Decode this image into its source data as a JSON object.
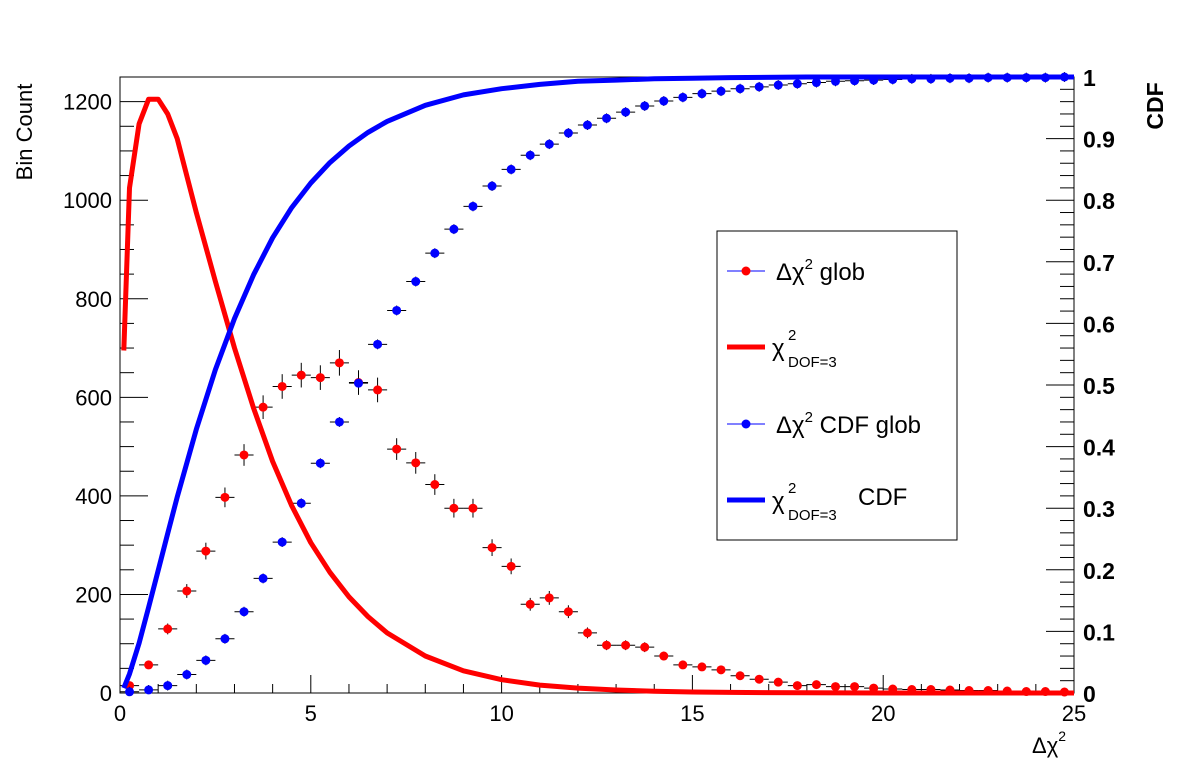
{
  "chart_data": {
    "type": "scatter",
    "x_axis": {
      "title": "Δχ",
      "title_superscript": "2",
      "range": [
        0,
        25
      ],
      "major_ticks": [
        0,
        5,
        10,
        15,
        20,
        25
      ],
      "tick_labels": [
        "0",
        "5",
        "10",
        "15",
        "20",
        "25"
      ]
    },
    "y_axis_left": {
      "title": "Bin Count",
      "range": [
        0,
        1250
      ],
      "major_ticks": [
        0,
        200,
        400,
        600,
        800,
        1000,
        1200
      ],
      "tick_labels": [
        "0",
        "200",
        "400",
        "600",
        "800",
        "1000",
        "1200"
      ]
    },
    "y_axis_right": {
      "title": "CDF",
      "range": [
        0,
        1
      ],
      "major_ticks": [
        0,
        0.1,
        0.2,
        0.3,
        0.4,
        0.5,
        0.6,
        0.7,
        0.8,
        0.9,
        1
      ],
      "tick_labels": [
        "0",
        "0.1",
        "0.2",
        "0.3",
        "0.4",
        "0.5",
        "0.6",
        "0.7",
        "0.8",
        "0.9",
        "1"
      ]
    },
    "legend": {
      "placement": "center-right",
      "entries": [
        {
          "key": "glob",
          "text_main": "Δχ",
          "text_sup": "2",
          "text_after": " glob",
          "text_sub": ""
        },
        {
          "key": "chi2",
          "text_main": "χ",
          "text_sup": "2",
          "text_after": "",
          "text_sub": "DOF=3"
        },
        {
          "key": "cdf_glob",
          "text_main": "Δχ",
          "text_sup": "2",
          "text_after": " CDF glob",
          "text_sub": ""
        },
        {
          "key": "chi2_cdf",
          "text_main": "χ",
          "text_sup": "2",
          "text_after": " CDF",
          "text_sub": "DOF=3"
        }
      ]
    },
    "series": [
      {
        "name": "Δχ2 glob",
        "kind": "points",
        "axis": "left",
        "color": "#ff0000",
        "x": [
          0.25,
          0.75,
          1.25,
          1.75,
          2.25,
          2.75,
          3.25,
          3.75,
          4.25,
          4.75,
          5.25,
          5.75,
          6.25,
          6.75,
          7.25,
          7.75,
          8.25,
          8.75,
          9.25,
          9.75,
          10.25,
          10.75,
          11.25,
          11.75,
          12.25,
          12.75,
          13.25,
          13.75,
          14.25,
          14.75,
          15.25,
          15.75,
          16.25,
          16.75,
          17.25,
          17.75,
          18.25,
          18.75,
          19.25,
          19.75,
          20.25,
          20.75,
          21.25,
          21.75,
          22.25,
          22.75,
          23.25,
          23.75,
          24.25,
          24.75
        ],
        "y": [
          15,
          57,
          130,
          207,
          288,
          397,
          483,
          580,
          622,
          645,
          640,
          670,
          630,
          615,
          495,
          467,
          423,
          375,
          375,
          295,
          257,
          180,
          193,
          165,
          122,
          97,
          97,
          93,
          75,
          57,
          53,
          47,
          35,
          28,
          22,
          15,
          17,
          13,
          13,
          10,
          8,
          7,
          7,
          6,
          5,
          5,
          4,
          3,
          3,
          2
        ],
        "yerr": [
          4,
          8,
          11,
          14,
          17,
          20,
          22,
          24,
          25,
          25,
          25,
          26,
          25,
          25,
          22,
          22,
          21,
          19,
          19,
          17,
          16,
          13,
          14,
          13,
          11,
          10,
          10,
          10,
          9,
          8,
          7,
          7,
          6,
          5,
          5,
          4,
          4,
          4,
          4,
          3,
          3,
          3,
          3,
          2,
          2,
          2,
          2,
          2,
          2,
          1
        ],
        "xerr": 0.25
      },
      {
        "name": "Δχ2 CDF glob",
        "kind": "points",
        "axis": "right",
        "color": "#0000ff",
        "x": [
          0.25,
          0.75,
          1.25,
          1.75,
          2.25,
          2.75,
          3.25,
          3.75,
          4.25,
          4.75,
          5.25,
          5.75,
          6.25,
          6.75,
          7.25,
          7.75,
          8.25,
          8.75,
          9.25,
          9.75,
          10.25,
          10.75,
          11.25,
          11.75,
          12.25,
          12.75,
          13.25,
          13.75,
          14.25,
          14.75,
          15.25,
          15.75,
          16.25,
          16.75,
          17.25,
          17.75,
          18.25,
          18.75,
          19.25,
          19.75,
          20.25,
          20.75,
          21.25,
          21.75,
          22.25,
          22.75,
          23.25,
          23.75,
          24.25,
          24.75
        ],
        "y": [
          0.002,
          0.005,
          0.012,
          0.03,
          0.053,
          0.088,
          0.132,
          0.186,
          0.245,
          0.308,
          0.373,
          0.44,
          0.503,
          0.566,
          0.621,
          0.668,
          0.714,
          0.753,
          0.79,
          0.823,
          0.85,
          0.873,
          0.891,
          0.909,
          0.922,
          0.933,
          0.943,
          0.953,
          0.961,
          0.967,
          0.973,
          0.977,
          0.981,
          0.984,
          0.987,
          0.989,
          0.991,
          0.993,
          0.994,
          0.995,
          0.996,
          0.997,
          0.997,
          0.998,
          0.998,
          0.999,
          0.999,
          0.999,
          0.999,
          1.0
        ],
        "yerr": 0.008,
        "xerr": 0.25
      },
      {
        "name": "χ2 DOF=3",
        "kind": "curve",
        "axis": "left",
        "color": "#ff0000",
        "x": [
          0.1,
          0.25,
          0.5,
          0.75,
          1.0,
          1.25,
          1.5,
          2.0,
          2.5,
          3.0,
          3.5,
          4.0,
          4.5,
          5.0,
          5.5,
          6.0,
          6.5,
          7.0,
          8.0,
          9.0,
          10.0,
          11.0,
          12.0,
          13.0,
          14.0,
          15.0,
          16.0,
          18.0,
          20.0,
          22.0,
          25.0
        ],
        "y": [
          695,
          1025,
          1155,
          1205,
          1205,
          1175,
          1125,
          975,
          835,
          700,
          578,
          470,
          380,
          305,
          245,
          195,
          155,
          122,
          75,
          45,
          27,
          16,
          10,
          6,
          3.5,
          2,
          1.2,
          0.4,
          0.1,
          0.05,
          0
        ]
      },
      {
        "name": "χ2 DOF=3 CDF",
        "kind": "curve",
        "axis": "right",
        "color": "#0000ff",
        "x": [
          0.1,
          0.25,
          0.5,
          0.75,
          1.0,
          1.25,
          1.5,
          2.0,
          2.5,
          3.0,
          3.5,
          4.0,
          4.5,
          5.0,
          5.5,
          6.0,
          6.5,
          7.0,
          8.0,
          9.0,
          10.0,
          11.0,
          12.0,
          13.0,
          14.0,
          15.0,
          16.0,
          18.0,
          20.0,
          22.0,
          25.0
        ],
        "y": [
          0.008,
          0.031,
          0.081,
          0.139,
          0.199,
          0.259,
          0.318,
          0.428,
          0.525,
          0.608,
          0.679,
          0.739,
          0.788,
          0.828,
          0.861,
          0.888,
          0.91,
          0.928,
          0.954,
          0.971,
          0.981,
          0.988,
          0.993,
          0.995,
          0.997,
          0.998,
          0.999,
          1.0,
          1.0,
          1.0,
          1.0
        ]
      }
    ]
  }
}
